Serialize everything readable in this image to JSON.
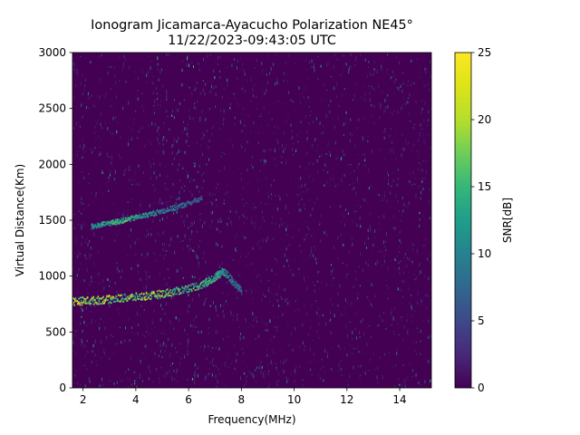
{
  "chart_data": {
    "type": "heatmap",
    "title": "Ionogram Jicamarca-Ayacucho Polarization NE45°",
    "subtitle": "11/22/2023-09:43:05 UTC",
    "xlabel": "Frequency(MHz)",
    "ylabel": "Virtual Distance(Km)",
    "xlim": [
      1.6,
      15.2
    ],
    "ylim": [
      0,
      3000
    ],
    "xticks": [
      2,
      4,
      6,
      8,
      10,
      12,
      14
    ],
    "yticks": [
      0,
      500,
      1000,
      1500,
      2000,
      2500,
      3000
    ],
    "colorbar": {
      "label": "SNR[dB]",
      "range": [
        0,
        25
      ],
      "ticks": [
        0,
        5,
        10,
        15,
        20,
        25
      ],
      "colormap": "viridis"
    },
    "traces": [
      {
        "x": [
          1.6,
          2.5,
          3.5,
          4.5,
          5.5,
          6.5,
          7.0,
          7.3,
          8.0
        ],
        "y": [
          780,
          790,
          810,
          830,
          870,
          930,
          1000,
          1050,
          870
        ],
        "snr_db": [
          22,
          21,
          20,
          19,
          17,
          16,
          15,
          13,
          8
        ]
      },
      {
        "x": [
          2.3,
          3.0,
          3.6,
          4.5,
          5.5,
          6.5
        ],
        "y": [
          1450,
          1480,
          1510,
          1560,
          1620,
          1700
        ],
        "snr_db": [
          13,
          15,
          16,
          12,
          10,
          7
        ]
      }
    ]
  }
}
